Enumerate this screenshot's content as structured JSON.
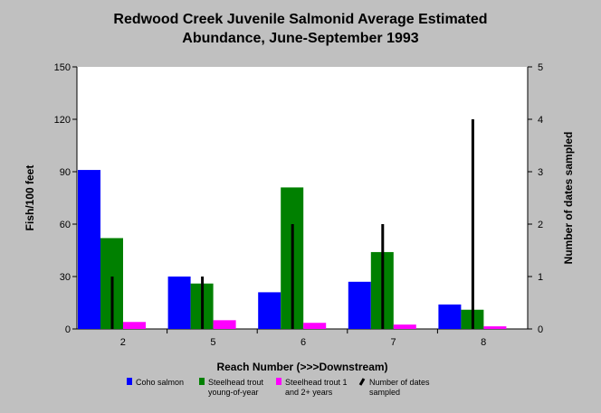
{
  "chart_data": {
    "type": "bar",
    "title_lines": [
      "Redwood Creek Juvenile Salmonid Average Estimated",
      "Abundance, June-September 1993"
    ],
    "xlabel": "Reach Number (>>>Downstream)",
    "ylabel": "Fish/100 feet",
    "y2label": "Number of dates sampled",
    "categories": [
      "2",
      "5",
      "6",
      "7",
      "8"
    ],
    "ylim": [
      0,
      150
    ],
    "yticks": [
      0,
      30,
      60,
      90,
      120,
      150
    ],
    "y2lim": [
      0,
      5
    ],
    "y2ticks": [
      0,
      1,
      2,
      3,
      4,
      5
    ],
    "grid": false,
    "legend_position": "bottom",
    "series": [
      {
        "name": "Coho salmon",
        "axis": "left",
        "color": "#0000ff",
        "values": [
          91,
          30,
          21,
          27,
          14
        ]
      },
      {
        "name": "Steelhead trout young-of-year",
        "legend_lines": [
          "Steelhead trout",
          "young-of-year"
        ],
        "axis": "left",
        "color": "#008000",
        "values": [
          52,
          26,
          81,
          44,
          11
        ]
      },
      {
        "name": "Steelhead trout 1 and 2+ years",
        "legend_lines": [
          "Steelhead trout 1",
          "and 2+ years"
        ],
        "axis": "left",
        "color": "#ff00ff",
        "values": [
          4,
          5,
          3.5,
          2.5,
          1.5
        ]
      },
      {
        "name": "Number of dates sampled",
        "legend_lines": [
          "Number of dates",
          "sampled"
        ],
        "axis": "right",
        "color": "#000000",
        "style": "line",
        "values": [
          1,
          1,
          2,
          2,
          4
        ]
      }
    ]
  }
}
